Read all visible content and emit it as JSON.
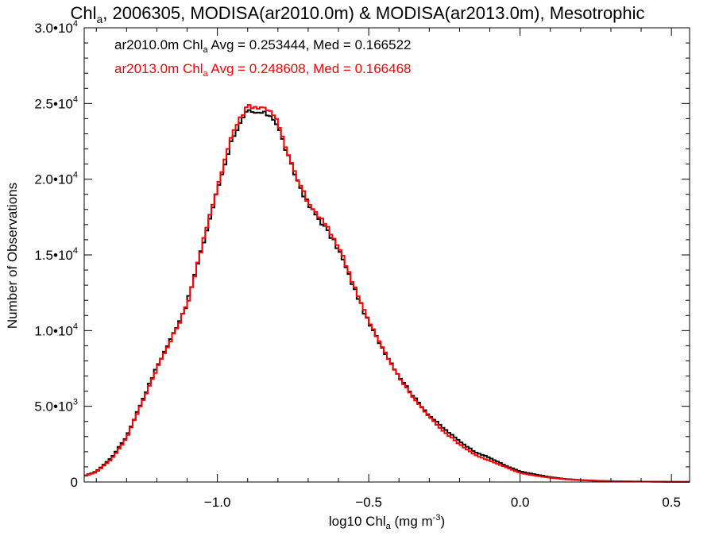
{
  "chart_data": {
    "type": "line",
    "title_parts": {
      "pre": "Chl",
      "sub": "a",
      "post": ", 2006305, MODISA(ar2010.0m) & MODISA(ar2013.0m), Mesotrophic"
    },
    "xlabel_parts": {
      "pre": "log10 Chl",
      "sub": "a",
      "mid": " (mg m",
      "sup": "-3",
      "post": ")"
    },
    "ylabel": "Number of Observations",
    "xlim": [
      -1.44,
      0.56
    ],
    "ylim": [
      0,
      30000
    ],
    "x_ticks": [
      {
        "value": -1.0,
        "label": "−1.0"
      },
      {
        "value": -0.5,
        "label": "−0.5"
      },
      {
        "value": 0.0,
        "label": "0.0"
      },
      {
        "value": 0.5,
        "label": "0.5"
      }
    ],
    "y_ticks": [
      {
        "value": 0,
        "mant": "0",
        "exp": ""
      },
      {
        "value": 5000,
        "mant": "5.0•10",
        "exp": "3"
      },
      {
        "value": 10000,
        "mant": "1.0•10",
        "exp": "4"
      },
      {
        "value": 15000,
        "mant": "1.5•10",
        "exp": "4"
      },
      {
        "value": 20000,
        "mant": "2.0•10",
        "exp": "4"
      },
      {
        "value": 25000,
        "mant": "2.5•10",
        "exp": "4"
      },
      {
        "value": 30000,
        "mant": "3.0•10",
        "exp": "4"
      }
    ],
    "bin_width": 0.01,
    "legend": [
      {
        "color": "#000000",
        "pre": "ar2010.0m Chl",
        "sub": "a",
        "post": " Avg = 0.253444, Med = 0.166522"
      },
      {
        "color": "#ff0000",
        "pre": "ar2013.0m Chl",
        "sub": "a",
        "post": " Avg = 0.248608, Med = 0.166468"
      }
    ],
    "series": [
      {
        "color": "#000000",
        "x": [
          -1.44,
          -1.4,
          -1.35,
          -1.3,
          -1.25,
          -1.2,
          -1.15,
          -1.1,
          -1.05,
          -1.0,
          -0.95,
          -0.9,
          -0.88,
          -0.86,
          -0.84,
          -0.82,
          -0.8,
          -0.78,
          -0.75,
          -0.7,
          -0.65,
          -0.6,
          -0.55,
          -0.5,
          -0.45,
          -0.4,
          -0.35,
          -0.3,
          -0.25,
          -0.2,
          -0.15,
          -0.1,
          -0.05,
          0.0,
          0.05,
          0.1,
          0.15,
          0.2,
          0.25,
          0.3,
          0.35,
          0.4,
          0.45,
          0.5,
          0.56
        ],
        "y": [
          400,
          700,
          1600,
          3000,
          5300,
          7600,
          9600,
          11800,
          15500,
          19300,
          22800,
          24500,
          24300,
          24400,
          24300,
          24200,
          23500,
          22300,
          20600,
          18300,
          17000,
          15400,
          12900,
          10500,
          8700,
          7000,
          5600,
          4400,
          3500,
          2700,
          2000,
          1600,
          1100,
          700,
          500,
          320,
          200,
          130,
          90,
          60,
          40,
          30,
          20,
          15,
          10
        ]
      },
      {
        "color": "#ff0000",
        "x": [
          -1.44,
          -1.4,
          -1.35,
          -1.3,
          -1.25,
          -1.2,
          -1.15,
          -1.1,
          -1.05,
          -1.0,
          -0.95,
          -0.9,
          -0.88,
          -0.86,
          -0.84,
          -0.82,
          -0.8,
          -0.78,
          -0.75,
          -0.7,
          -0.65,
          -0.6,
          -0.55,
          -0.5,
          -0.45,
          -0.4,
          -0.35,
          -0.3,
          -0.25,
          -0.2,
          -0.15,
          -0.1,
          -0.05,
          0.0,
          0.05,
          0.1,
          0.15,
          0.2,
          0.25,
          0.3,
          0.35,
          0.4,
          0.45,
          0.5,
          0.56
        ],
        "y": [
          380,
          650,
          1500,
          2900,
          5200,
          7500,
          9500,
          11700,
          15600,
          19500,
          23100,
          24900,
          24800,
          24700,
          24700,
          24500,
          23700,
          22400,
          20700,
          18400,
          17200,
          15600,
          13100,
          10600,
          8700,
          6900,
          5500,
          4300,
          3300,
          2500,
          1800,
          1400,
          1000,
          600,
          420,
          280,
          180,
          120,
          80,
          55,
          40,
          30,
          20,
          12,
          8
        ]
      }
    ]
  }
}
